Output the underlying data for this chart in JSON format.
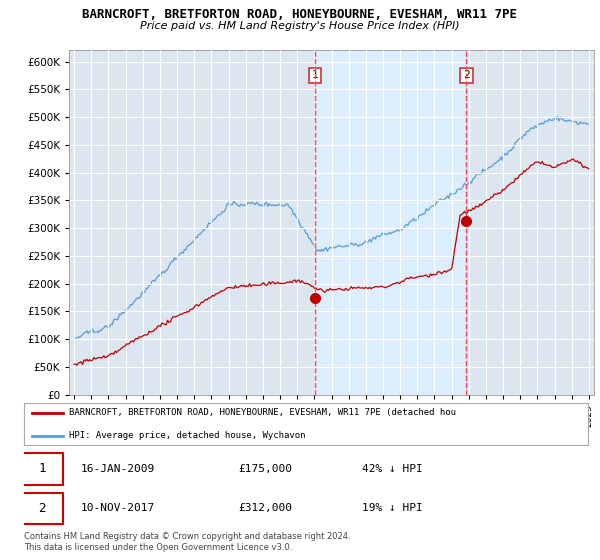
{
  "title": "BARNCROFT, BRETFORTON ROAD, HONEYBOURNE, EVESHAM, WR11 7PE",
  "subtitle": "Price paid vs. HM Land Registry's House Price Index (HPI)",
  "legend_line1": "BARNCROFT, BRETFORTON ROAD, HONEYBOURNE, EVESHAM, WR11 7PE (detached hou",
  "legend_line2": "HPI: Average price, detached house, Wychavon",
  "transaction1_date": "16-JAN-2009",
  "transaction1_price": "£175,000",
  "transaction1_hpi": "42% ↓ HPI",
  "transaction2_date": "10-NOV-2017",
  "transaction2_price": "£312,000",
  "transaction2_hpi": "19% ↓ HPI",
  "footer": "Contains HM Land Registry data © Crown copyright and database right 2024.\nThis data is licensed under the Open Government Licence v3.0.",
  "hpi_color": "#5b9bd5",
  "price_color": "#c00000",
  "marker_color": "#c00000",
  "vline_color": "#ff4444",
  "shade_color": "#ddeeff",
  "ylim": [
    0,
    620000
  ],
  "yticks": [
    0,
    50000,
    100000,
    150000,
    200000,
    250000,
    300000,
    350000,
    400000,
    450000,
    500000,
    550000,
    600000
  ],
  "background_color": "#dce6f1",
  "t1_x": 2009.04,
  "t1_y": 175000,
  "t2_x": 2017.86,
  "t2_y": 312000,
  "xmin": 1994.7,
  "xmax": 2025.3
}
